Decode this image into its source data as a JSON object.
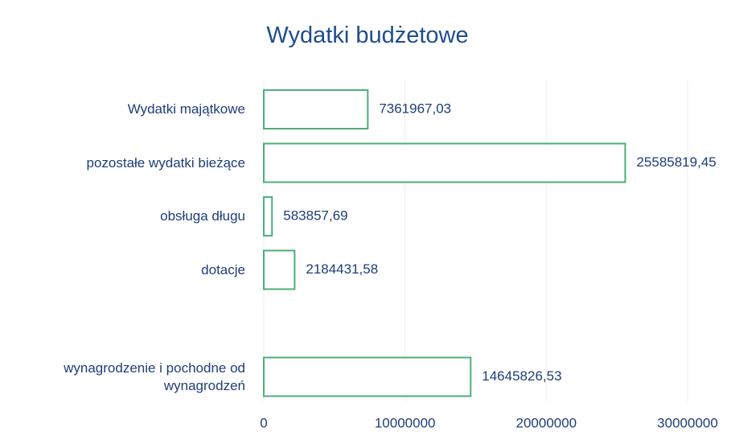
{
  "chart_data": {
    "type": "barh",
    "title": "Wydatki budżetowe",
    "categories": [
      "Wydatki majątkowe",
      "pozostałe wydatki bieżące",
      "obsługa długu",
      "dotacje",
      null,
      "wynagrodzenie i pochodne od wynagrodzeń"
    ],
    "values": [
      7361967.03,
      25585819.45,
      583857.69,
      2184431.58,
      null,
      14645826.53
    ],
    "value_labels": [
      "7361967,03",
      "25585819,45",
      "583857,69",
      "2184431,58",
      null,
      "14645826,53"
    ],
    "color": "#4caf78",
    "xlim": [
      0,
      30000000
    ],
    "xticks": [
      0,
      10000000,
      20000000,
      30000000
    ],
    "grid": true
  }
}
